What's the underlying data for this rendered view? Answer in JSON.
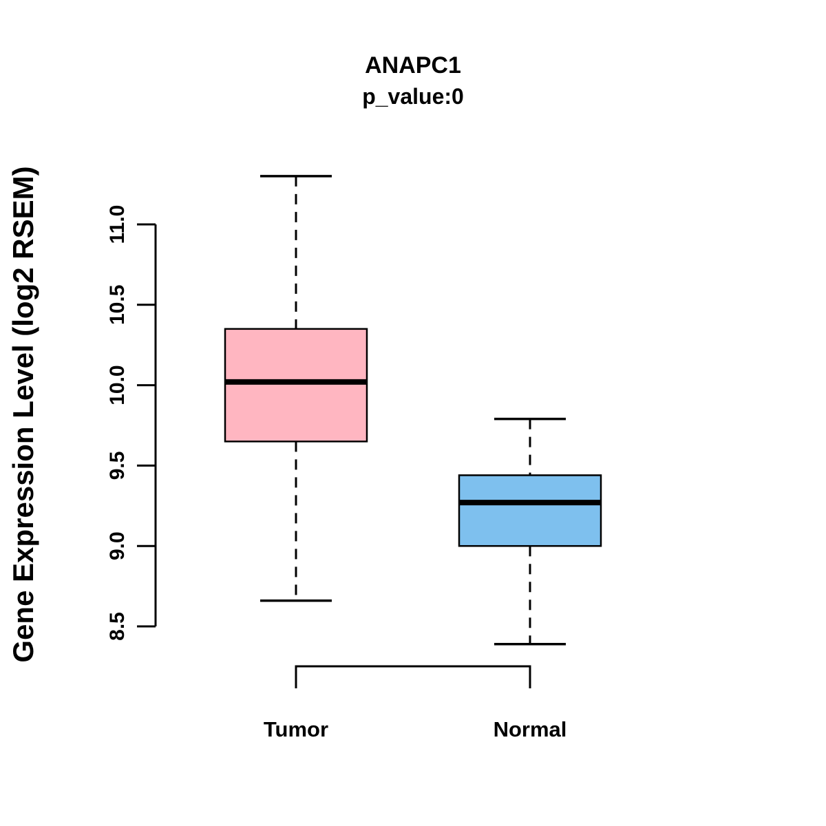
{
  "title": "ANAPC1",
  "subtitle": "p_value:0",
  "chart_data": {
    "type": "boxplot",
    "title": "ANAPC1",
    "subtitle": "p_value:0",
    "xlabel": "",
    "ylabel": "Gene Expression Level (log2 RSEM)",
    "ytick_labels": [
      "8.5",
      "9.0",
      "9.5",
      "10.0",
      "10.5",
      "11.0"
    ],
    "ytick_values": [
      8.5,
      9.0,
      9.5,
      10.0,
      10.5,
      11.0
    ],
    "ylim": [
      8.3,
      11.35
    ],
    "grid": false,
    "legend": "none",
    "categories": [
      "Tumor",
      "Normal"
    ],
    "groups": [
      {
        "label": "Tumor",
        "color": "#FFB6C1",
        "whisker_low": 8.66,
        "q1": 9.65,
        "median": 10.02,
        "q3": 10.35,
        "whisker_high": 11.3
      },
      {
        "label": "Normal",
        "color": "#7EC0EE",
        "whisker_low": 8.39,
        "q1": 9.0,
        "median": 9.27,
        "q3": 9.44,
        "whisker_high": 9.79
      }
    ],
    "colors": {
      "tumor_box": "#FFB6C1",
      "normal_box": "#7EC0EE",
      "box_border": "#000000",
      "median_line": "#000000",
      "background": "#FFFFFF"
    }
  }
}
